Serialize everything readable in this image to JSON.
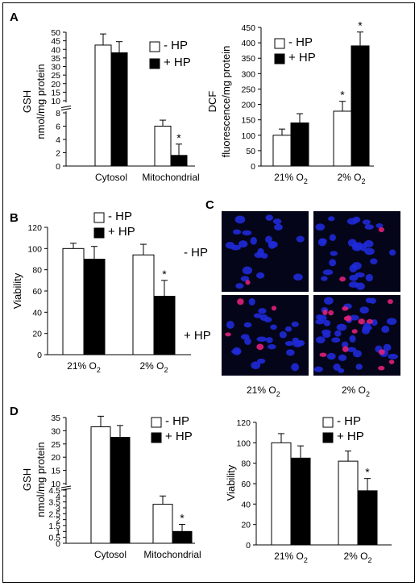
{
  "panels": {
    "a": "A",
    "b": "B",
    "c": "C",
    "d": "D"
  },
  "legend": {
    "minus": "- HP",
    "plus": "+ HP"
  },
  "chart_data": [
    {
      "id": "A1",
      "type": "bar",
      "ylabel": "GSH",
      "ylabel2": "nmol/mg protein",
      "categories": [
        "Cytosol",
        "Mitochondrial"
      ],
      "axis_break": true,
      "yticks_upper": [
        10,
        15,
        20,
        25,
        30,
        35,
        40,
        45,
        50
      ],
      "yticks_lower": [
        0,
        2,
        4,
        6,
        8
      ],
      "series": [
        {
          "name": "- HP",
          "color": "#ffffff",
          "values": [
            42.5,
            6.0
          ],
          "errors": [
            6.5,
            0.9
          ]
        },
        {
          "name": "+ HP",
          "color": "#000000",
          "values": [
            38.0,
            1.6
          ],
          "errors": [
            6.5,
            1.7
          ]
        }
      ],
      "significance": [
        "",
        "*"
      ]
    },
    {
      "id": "A2",
      "type": "bar",
      "ylabel": "DCF",
      "ylabel2": "fluorescence/mg protein",
      "categories": [
        "21% O",
        "2% O"
      ],
      "cat_sub": "2",
      "ylim": [
        0,
        450
      ],
      "yticks": [
        0,
        50,
        100,
        150,
        200,
        250,
        300,
        350,
        400,
        450
      ],
      "series": [
        {
          "name": "- HP",
          "color": "#ffffff",
          "values": [
            100,
            178
          ],
          "errors": [
            20,
            32
          ]
        },
        {
          "name": "+ HP",
          "color": "#000000",
          "values": [
            140,
            390
          ],
          "errors": [
            30,
            45
          ]
        }
      ],
      "significance": [
        [
          "",
          ""
        ],
        [
          "*",
          "*"
        ]
      ]
    },
    {
      "id": "B",
      "type": "bar",
      "ylabel": "Viability",
      "categories": [
        "21% O",
        "2% O"
      ],
      "cat_sub": "2",
      "ylim": [
        0,
        120
      ],
      "yticks": [
        0,
        20,
        40,
        60,
        80,
        100,
        120
      ],
      "series": [
        {
          "name": "- HP",
          "color": "#ffffff",
          "values": [
            100,
            94
          ],
          "errors": [
            5,
            10
          ]
        },
        {
          "name": "+ HP",
          "color": "#000000",
          "values": [
            90,
            55
          ],
          "errors": [
            12,
            15
          ]
        }
      ],
      "significance": [
        "",
        "*"
      ]
    },
    {
      "id": "D1",
      "type": "bar",
      "ylabel": "GSH",
      "ylabel2": "nmol/mg protein",
      "categories": [
        "Cytosol",
        "Mitochondrial"
      ],
      "axis_break": true,
      "yticks_upper": [
        10,
        15,
        20,
        25,
        30,
        35
      ],
      "yticks_lower": [
        0,
        0.5,
        1,
        1.5,
        2,
        2.5,
        3,
        3.5,
        4,
        4.5
      ],
      "series": [
        {
          "name": "- HP",
          "color": "#ffffff",
          "values": [
            31.5,
            3.3
          ],
          "errors": [
            4,
            0.7
          ]
        },
        {
          "name": "+ HP",
          "color": "#000000",
          "values": [
            27.5,
            1.0
          ],
          "errors": [
            4.5,
            0.6
          ]
        }
      ],
      "significance": [
        "",
        "*"
      ]
    },
    {
      "id": "D2",
      "type": "bar",
      "ylabel": "Viability",
      "categories": [
        "21% O",
        "2% O"
      ],
      "cat_sub": "2",
      "ylim": [
        0,
        120
      ],
      "yticks": [
        0,
        20,
        40,
        60,
        80,
        100,
        120
      ],
      "series": [
        {
          "name": "- HP",
          "color": "#ffffff",
          "values": [
            100,
            82
          ],
          "errors": [
            9,
            10
          ]
        },
        {
          "name": "+ HP",
          "color": "#000000",
          "values": [
            85,
            53
          ],
          "errors": [
            12,
            12
          ]
        }
      ],
      "significance": [
        "",
        "*"
      ]
    }
  ],
  "micrograph": {
    "row_labels": [
      "- HP",
      "+ HP"
    ],
    "col_labels": [
      "21% O",
      "2% O"
    ],
    "col_sub": "2",
    "nucleus_color": "#1f2ad8",
    "apoptotic_color": "#e0207a",
    "background": "#05051a"
  }
}
